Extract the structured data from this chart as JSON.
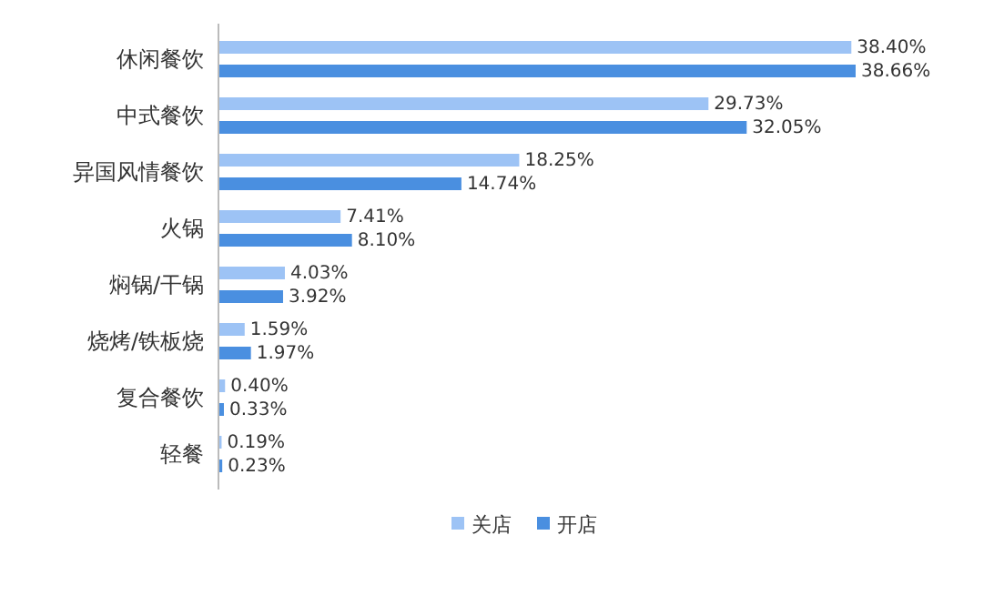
{
  "chart_data": {
    "type": "bar",
    "orientation": "horizontal",
    "categories": [
      "休闲餐饮",
      "中式餐饮",
      "异国风情餐饮",
      "火锅",
      "焖锅/干锅",
      "烧烤/铁板烧",
      "复合餐饮",
      "轻餐"
    ],
    "series": [
      {
        "name": "关店",
        "color": "#9dc3f5",
        "values": [
          38.4,
          29.73,
          18.25,
          7.41,
          4.03,
          1.59,
          0.4,
          0.19
        ],
        "value_labels": [
          "38.40%",
          "29.73%",
          "18.25%",
          "7.41%",
          "4.03%",
          "1.59%",
          "0.40%",
          "0.19%"
        ]
      },
      {
        "name": "开店",
        "color": "#4a8fe0",
        "values": [
          38.66,
          32.05,
          14.74,
          8.1,
          3.92,
          1.97,
          0.33,
          0.23
        ],
        "value_labels": [
          "38.66%",
          "32.05%",
          "14.74%",
          "8.10%",
          "3.92%",
          "1.97%",
          "0.33%",
          "0.23%"
        ]
      }
    ],
    "legend": "bottom"
  }
}
